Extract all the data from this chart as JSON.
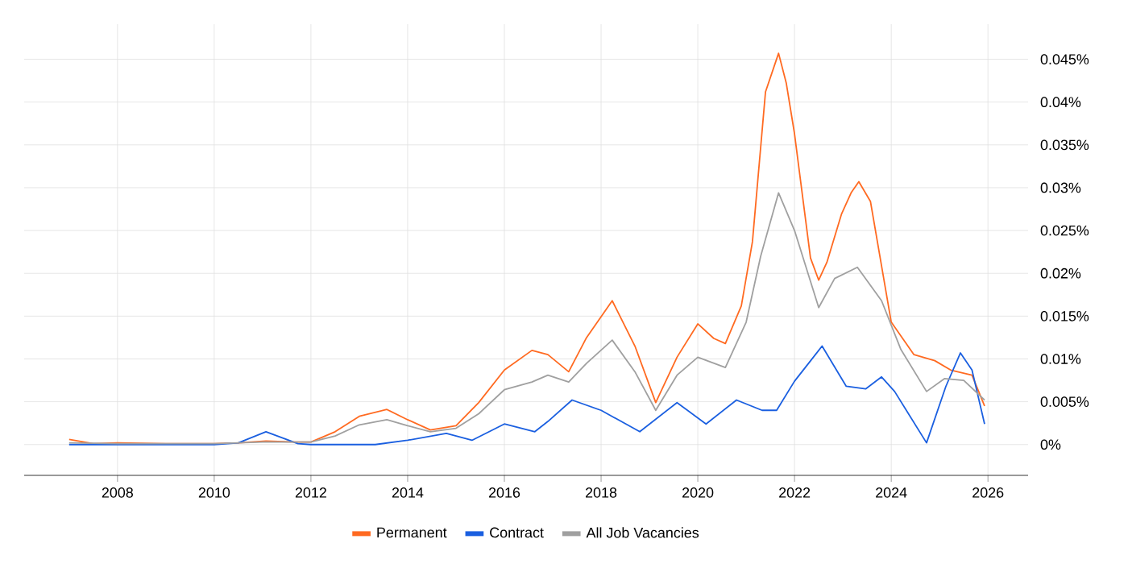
{
  "chart_data": {
    "type": "line",
    "xlim": [
      2006.07,
      2026.83
    ],
    "ylim": [
      -0.0036,
      0.0491
    ],
    "xticks": [
      2008,
      2010,
      2012,
      2014,
      2016,
      2018,
      2020,
      2022,
      2024,
      2026
    ],
    "yticks": [
      {
        "value": 0,
        "label": "0%"
      },
      {
        "value": 0.005,
        "label": "0.005%"
      },
      {
        "value": 0.01,
        "label": "0.01%"
      },
      {
        "value": 0.015,
        "label": "0.015%"
      },
      {
        "value": 0.02,
        "label": "0.02%"
      },
      {
        "value": 0.025,
        "label": "0.025%"
      },
      {
        "value": 0.03,
        "label": "0.03%"
      },
      {
        "value": 0.035,
        "label": "0.035%"
      },
      {
        "value": 0.04,
        "label": "0.04%"
      },
      {
        "value": 0.045,
        "label": "0.045%"
      }
    ],
    "grid": true,
    "legend": "bottom",
    "marker": "none",
    "line_style": "solid",
    "series": [
      {
        "name": "Permanent",
        "color": "#ff6a21",
        "x": [
          2007,
          2007.5,
          2008,
          2009,
          2010,
          2010.5,
          2011.07,
          2011.7,
          2012,
          2012.5,
          2013,
          2013.57,
          2014,
          2014.47,
          2015,
          2015.47,
          2016,
          2016.57,
          2016.9,
          2017.33,
          2017.7,
          2018.23,
          2018.7,
          2019.13,
          2019.57,
          2020,
          2020.33,
          2020.57,
          2020.9,
          2021.13,
          2021.4,
          2021.67,
          2021.83,
          2022,
          2022.33,
          2022.5,
          2022.67,
          2022.97,
          2023.17,
          2023.33,
          2023.57,
          2024,
          2024.47,
          2024.9,
          2025.23,
          2025.67,
          2025.93
        ],
        "values": [
          0.0006,
          0.0001,
          0.0002,
          0.0001,
          0.0001,
          0.0002,
          0.0004,
          0.0003,
          0.0003,
          0.0015,
          0.0033,
          0.0041,
          0.0029,
          0.0017,
          0.0022,
          0.0049,
          0.0087,
          0.011,
          0.0105,
          0.0085,
          0.0125,
          0.0168,
          0.0115,
          0.0049,
          0.0102,
          0.0141,
          0.0124,
          0.0118,
          0.0162,
          0.0237,
          0.0412,
          0.0457,
          0.0422,
          0.0363,
          0.0218,
          0.0192,
          0.0213,
          0.0269,
          0.0294,
          0.0307,
          0.0284,
          0.0143,
          0.0105,
          0.0098,
          0.0087,
          0.0081,
          0.0045
        ]
      },
      {
        "name": "Contract",
        "color": "#1a5fe0",
        "x": [
          2007,
          2008,
          2009,
          2010,
          2010.5,
          2011.07,
          2011.73,
          2012,
          2013,
          2013.33,
          2014,
          2014.8,
          2015.33,
          2016,
          2016.63,
          2016.9,
          2017.4,
          2018,
          2018.8,
          2019.57,
          2020.17,
          2020.8,
          2021.33,
          2021.63,
          2022,
          2022.57,
          2023.07,
          2023.47,
          2023.8,
          2024.07,
          2024.73,
          2025.13,
          2025.43,
          2025.67,
          2025.93
        ],
        "values": [
          0,
          0,
          0,
          0,
          0.0002,
          0.0015,
          0.0001,
          0,
          0,
          0,
          0.0005,
          0.0013,
          0.0005,
          0.0024,
          0.0015,
          0.0027,
          0.0052,
          0.004,
          0.0015,
          0.0049,
          0.0024,
          0.0052,
          0.004,
          0.004,
          0.0074,
          0.0115,
          0.0068,
          0.0065,
          0.0079,
          0.0062,
          0.0002,
          0.0068,
          0.0107,
          0.0087,
          0.0024
        ]
      },
      {
        "name": "All Job Vacancies",
        "color": "#a0a0a0",
        "x": [
          2007,
          2008,
          2009,
          2010,
          2011,
          2012,
          2012.5,
          2013,
          2013.57,
          2014,
          2014.47,
          2015,
          2015.47,
          2016,
          2016.57,
          2016.9,
          2017.33,
          2017.7,
          2018.23,
          2018.7,
          2019.13,
          2019.57,
          2020,
          2020.57,
          2021,
          2021.3,
          2021.67,
          2022,
          2022.5,
          2022.83,
          2023.3,
          2023.8,
          2024.2,
          2024.73,
          2025.1,
          2025.5,
          2025.93
        ],
        "values": [
          0.0002,
          0.0001,
          0.0001,
          0.0001,
          0.0003,
          0.0003,
          0.001,
          0.0023,
          0.0029,
          0.0022,
          0.0015,
          0.0019,
          0.0036,
          0.0064,
          0.0073,
          0.0081,
          0.0073,
          0.0095,
          0.0122,
          0.0085,
          0.004,
          0.0081,
          0.0102,
          0.009,
          0.0143,
          0.022,
          0.0294,
          0.025,
          0.016,
          0.0194,
          0.0207,
          0.0168,
          0.0111,
          0.0062,
          0.0077,
          0.0075,
          0.0052
        ]
      }
    ]
  }
}
